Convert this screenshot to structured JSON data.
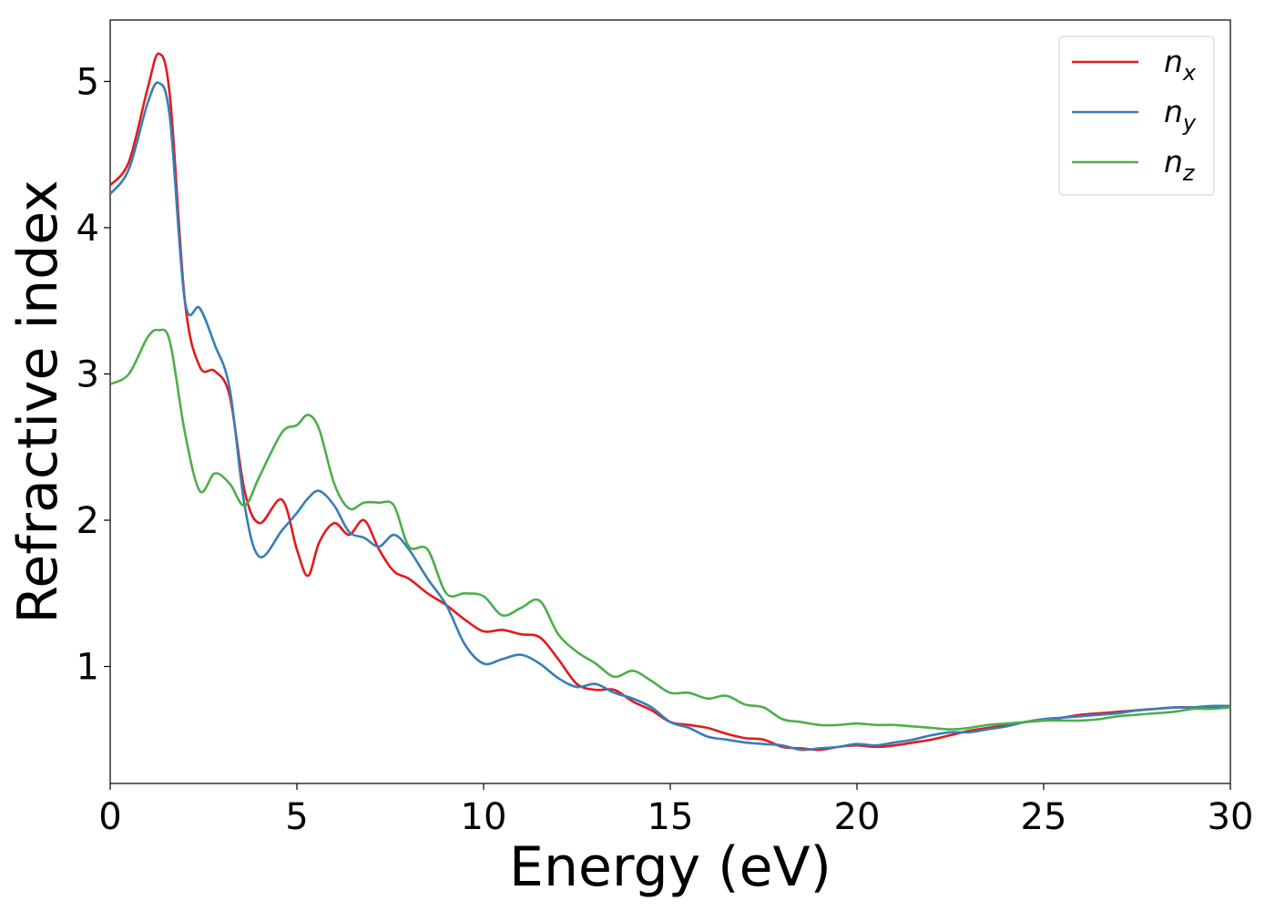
{
  "chart_data": {
    "type": "line",
    "title": "",
    "xlabel": "Energy (eV)",
    "ylabel": "Refractive index",
    "xlim": [
      0,
      30
    ],
    "ylim": [
      0.2,
      5.42
    ],
    "xticks": [
      0,
      5,
      10,
      15,
      20,
      25,
      30
    ],
    "yticks": [
      1,
      2,
      3,
      4,
      5
    ],
    "grid": false,
    "legend_position": "top-right",
    "x": [
      0,
      0.5,
      1,
      1.3,
      1.6,
      2,
      2.4,
      2.8,
      3.2,
      3.6,
      4,
      4.6,
      5,
      5.3,
      5.6,
      6,
      6.4,
      6.8,
      7.2,
      7.6,
      8,
      8.5,
      9,
      9.5,
      10,
      10.5,
      11,
      11.5,
      12,
      12.5,
      13,
      13.5,
      14,
      14.5,
      15,
      15.5,
      16,
      16.5,
      17,
      17.5,
      18,
      18.5,
      19,
      19.5,
      20,
      20.5,
      21,
      21.5,
      22,
      22.5,
      23,
      23.5,
      24,
      24.5,
      25,
      25.5,
      26,
      26.5,
      27,
      27.5,
      28,
      28.5,
      29,
      29.5,
      30
    ],
    "series": [
      {
        "name": "n",
        "subscript": "x",
        "color": "#e41a1c",
        "values": [
          4.29,
          4.45,
          4.95,
          5.19,
          4.9,
          3.5,
          3.05,
          3.02,
          2.85,
          2.2,
          1.98,
          2.14,
          1.8,
          1.62,
          1.85,
          1.98,
          1.9,
          2.0,
          1.8,
          1.65,
          1.6,
          1.5,
          1.42,
          1.32,
          1.24,
          1.25,
          1.22,
          1.2,
          1.05,
          0.88,
          0.84,
          0.84,
          0.76,
          0.7,
          0.62,
          0.6,
          0.58,
          0.54,
          0.51,
          0.5,
          0.45,
          0.44,
          0.43,
          0.45,
          0.46,
          0.45,
          0.46,
          0.48,
          0.5,
          0.53,
          0.56,
          0.58,
          0.6,
          0.62,
          0.63,
          0.65,
          0.67,
          0.68,
          0.69,
          0.7,
          0.71,
          0.72,
          0.72,
          0.72,
          0.73
        ]
      },
      {
        "name": "n",
        "subscript": "y",
        "color": "#377eb8",
        "values": [
          4.23,
          4.4,
          4.85,
          4.99,
          4.75,
          3.5,
          3.45,
          3.2,
          2.9,
          2.1,
          1.75,
          1.93,
          2.05,
          2.15,
          2.2,
          2.1,
          1.92,
          1.88,
          1.82,
          1.9,
          1.8,
          1.6,
          1.42,
          1.15,
          1.02,
          1.05,
          1.08,
          1.02,
          0.92,
          0.86,
          0.88,
          0.82,
          0.78,
          0.72,
          0.62,
          0.58,
          0.52,
          0.5,
          0.48,
          0.47,
          0.46,
          0.43,
          0.44,
          0.45,
          0.47,
          0.46,
          0.48,
          0.5,
          0.53,
          0.55,
          0.55,
          0.57,
          0.59,
          0.62,
          0.64,
          0.65,
          0.66,
          0.67,
          0.68,
          0.7,
          0.71,
          0.72,
          0.72,
          0.73,
          0.73
        ]
      },
      {
        "name": "n",
        "subscript": "z",
        "color": "#4daf4a",
        "values": [
          2.93,
          3.0,
          3.25,
          3.3,
          3.22,
          2.6,
          2.2,
          2.32,
          2.25,
          2.1,
          2.3,
          2.6,
          2.65,
          2.72,
          2.62,
          2.25,
          2.08,
          2.12,
          2.12,
          2.1,
          1.82,
          1.8,
          1.5,
          1.5,
          1.48,
          1.35,
          1.4,
          1.45,
          1.22,
          1.1,
          1.02,
          0.93,
          0.97,
          0.9,
          0.82,
          0.82,
          0.78,
          0.8,
          0.74,
          0.72,
          0.64,
          0.62,
          0.6,
          0.6,
          0.61,
          0.6,
          0.6,
          0.59,
          0.58,
          0.57,
          0.58,
          0.6,
          0.61,
          0.62,
          0.63,
          0.63,
          0.63,
          0.64,
          0.66,
          0.67,
          0.68,
          0.69,
          0.71,
          0.71,
          0.72
        ]
      }
    ]
  }
}
